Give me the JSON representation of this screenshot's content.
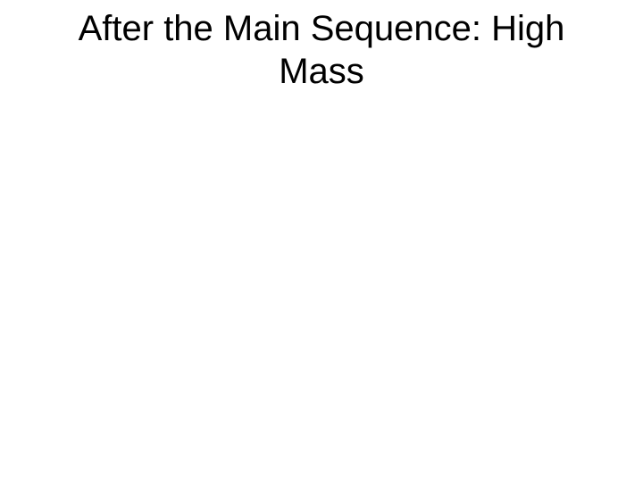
{
  "slide": {
    "title": "After the Main Sequence: High Mass",
    "title_fontsize": 40,
    "title_color": "#000000",
    "title_weight": 400,
    "title_align": "center",
    "background_color": "#ffffff",
    "font_family": "Arial"
  }
}
